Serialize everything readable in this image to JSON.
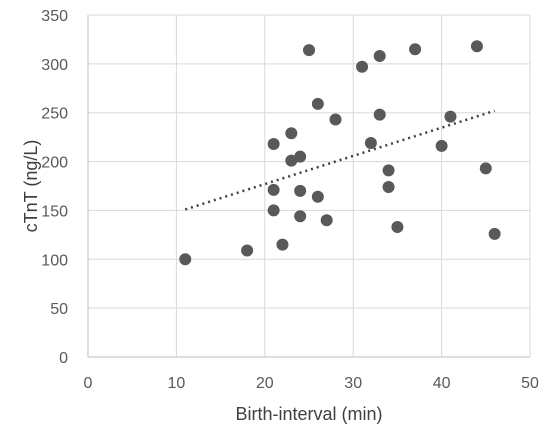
{
  "chart_data": {
    "type": "scatter",
    "title": "",
    "xlabel": "Birth-interval (min)",
    "ylabel": "cTnT (ng/L)",
    "xlim": [
      0,
      50
    ],
    "ylim": [
      0,
      350
    ],
    "xticks": [
      0,
      10,
      20,
      30,
      40,
      50
    ],
    "yticks": [
      0,
      50,
      100,
      150,
      200,
      250,
      300,
      350
    ],
    "grid": true,
    "legend": "none",
    "marker_color": "#595959",
    "trendline": {
      "type": "linear",
      "style": "dotted",
      "color": "#404040",
      "x": [
        11,
        46
      ],
      "y": [
        151,
        252
      ]
    },
    "series": [
      {
        "x": [
          11,
          18,
          21,
          21,
          21,
          22,
          23,
          23,
          24,
          24,
          24,
          25,
          26,
          26,
          27,
          28,
          31,
          32,
          33,
          33,
          34,
          34,
          35,
          37,
          40,
          41,
          44,
          45,
          46
        ],
        "y": [
          100,
          109,
          218,
          171,
          150,
          115,
          229,
          201,
          205,
          170,
          144,
          314,
          259,
          164,
          140,
          243,
          297,
          219,
          308,
          248,
          191,
          174,
          133,
          315,
          216,
          246,
          318,
          193,
          126
        ]
      }
    ]
  }
}
